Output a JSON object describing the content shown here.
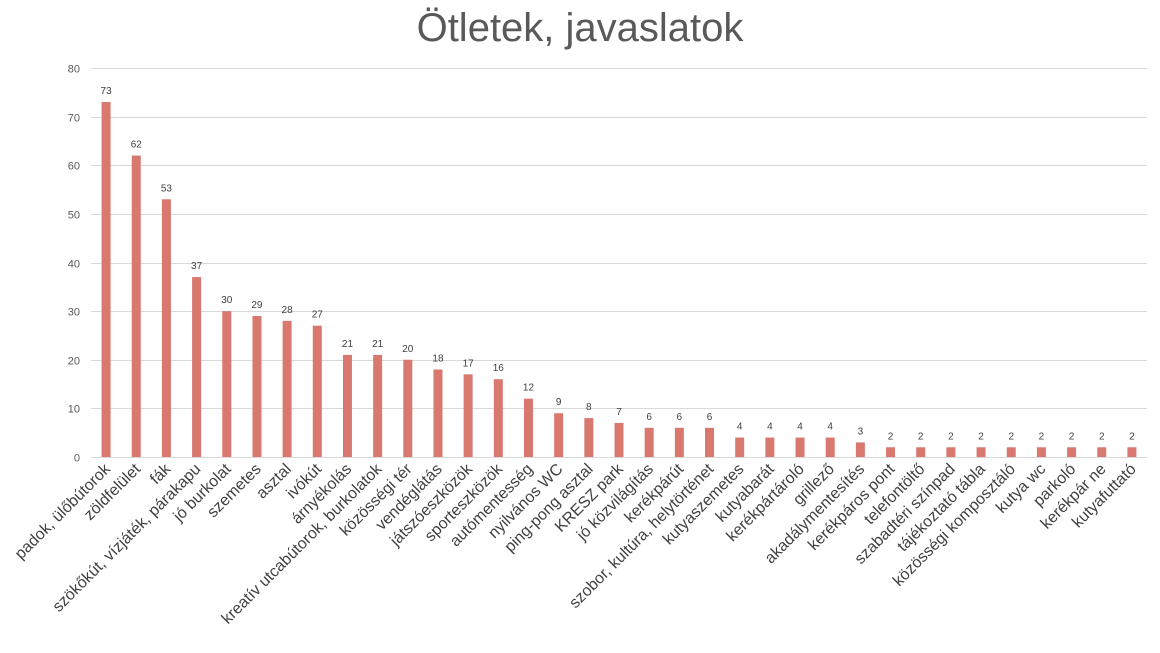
{
  "chart_data": {
    "type": "bar",
    "title": "Ötletek, javaslatok",
    "xlabel": "",
    "ylabel": "",
    "ylim": [
      0,
      80
    ],
    "yticks": [
      0,
      10,
      20,
      30,
      40,
      50,
      60,
      70,
      80
    ],
    "grid": true,
    "bar_color": "#d9786f",
    "categories": [
      "padok, ülőbútorok",
      "zöldfelület",
      "fák",
      "szökőkút, vízjáték, párakapu",
      "jó burkolat",
      "szemetes",
      "asztal",
      "ivókút",
      "árnyékolás",
      "kreatív utcabútorok, burkolatok",
      "közösségi tér",
      "vendéglátás",
      "játszóeszközök",
      "sporteszközök",
      "autómentesség",
      "nyilvános WC",
      "ping-pong asztal",
      "KRESZ park",
      "jó közvilágítás",
      "kerékpárút",
      "szobor, kultúra, helytörténet",
      "kutyaszemetes",
      "kutyabarát",
      "kerékpártároló",
      "grillező",
      "akadálymentesítés",
      "kerékpáros pont",
      "telefontöltő",
      "szabadtéri színpad",
      "tájékoztató tábla",
      "közösségi komposztáló",
      "kutya wc",
      "parkoló",
      "kerékpár ne",
      "kutyafuttató"
    ],
    "values": [
      73,
      62,
      53,
      37,
      30,
      29,
      28,
      27,
      21,
      21,
      20,
      18,
      17,
      16,
      12,
      9,
      8,
      7,
      6,
      6,
      6,
      4,
      4,
      4,
      4,
      3,
      2,
      2,
      2,
      2,
      2,
      2,
      2,
      2,
      2
    ]
  }
}
